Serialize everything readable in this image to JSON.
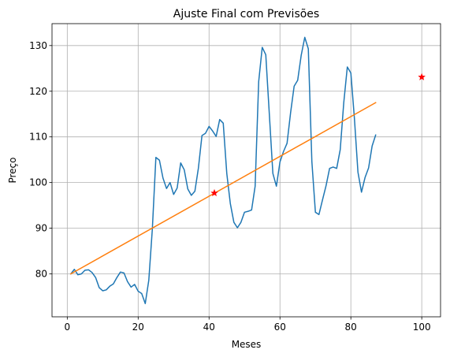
{
  "chart_data": {
    "type": "line",
    "title": "Ajuste Final com Previsões",
    "xlabel": "Meses",
    "ylabel": "Preço",
    "xlim": [
      -4.3,
      105.3
    ],
    "ylim": [
      70.6,
      134.8
    ],
    "xticks": [
      0,
      20,
      40,
      60,
      80,
      100
    ],
    "yticks": [
      80,
      90,
      100,
      110,
      120,
      130
    ],
    "grid": true,
    "series": [
      {
        "color": "#1f77b4",
        "x": [
          1,
          2,
          3,
          4,
          5,
          6,
          7,
          8,
          9,
          10,
          11,
          12,
          13,
          14,
          15,
          16,
          17,
          18,
          19,
          20,
          21,
          22,
          23,
          24,
          25,
          26,
          27,
          28,
          29,
          30,
          31,
          32,
          33,
          34,
          35,
          36,
          37,
          38,
          39,
          40,
          41,
          42,
          43,
          44,
          45,
          46,
          47,
          48,
          49,
          50,
          51,
          52,
          53,
          54,
          55,
          56,
          57,
          58,
          59,
          60,
          61,
          62,
          63,
          64,
          65,
          66,
          67,
          68,
          69,
          70,
          71,
          72,
          73,
          74,
          75,
          76,
          77,
          78,
          79,
          80,
          81,
          82,
          83,
          84,
          85,
          86,
          87
        ],
        "y": [
          80.0,
          81.0,
          79.8,
          80.0,
          80.8,
          80.9,
          80.3,
          79.2,
          77.0,
          76.3,
          76.5,
          77.3,
          77.8,
          79.2,
          80.4,
          80.2,
          78.3,
          77.1,
          77.7,
          76.2,
          75.7,
          73.5,
          78.6,
          89.8,
          105.5,
          104.9,
          101.0,
          98.7,
          100.0,
          97.4,
          98.8,
          104.3,
          102.8,
          98.6,
          97.2,
          98.1,
          103.2,
          110.3,
          110.8,
          112.3,
          111.3,
          110.1,
          113.8,
          113.0,
          102.0,
          95.4,
          91.3,
          90.1,
          91.3,
          93.5,
          93.7,
          94.0,
          99.2,
          122.1,
          129.6,
          128.0,
          115.0,
          102.0,
          99.2,
          104.5,
          106.8,
          108.6,
          115.3,
          121.1,
          122.4,
          127.9,
          131.8,
          129.3,
          104.6,
          93.5,
          93.0,
          96.2,
          99.3,
          103.1,
          103.4,
          103.1,
          107.2,
          117.5,
          125.3,
          124.0,
          114.1,
          102.3,
          97.9,
          101.1,
          103.2,
          108.0,
          110.4
        ]
      },
      {
        "color": "#ff7f0e",
        "x": [
          1,
          87
        ],
        "y": [
          80.0,
          117.5
        ]
      }
    ],
    "markers": {
      "color": "#ff0000",
      "symbol": "star",
      "points": [
        {
          "x": 41.5,
          "y": 97.7
        },
        {
          "x": 100,
          "y": 123.1
        }
      ]
    }
  }
}
